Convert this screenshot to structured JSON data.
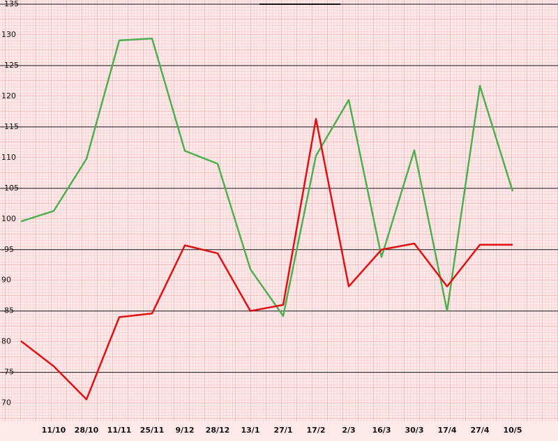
{
  "chart_data": {
    "type": "line",
    "categories": [
      null,
      "11/10",
      "28/10",
      "11/11",
      "25/11",
      "9/12",
      "28/12",
      "13/1",
      "27/1",
      "17/2",
      "2/3",
      "16/3",
      "30/3",
      "17/4",
      "27/4",
      "10/5"
    ],
    "series": [
      {
        "color": "#4caf50",
        "values": [
          99.6,
          101.3,
          109.8,
          129.1,
          129.4,
          111.1,
          109,
          91.8,
          84.2,
          110.3,
          119.4,
          93.8,
          111.2,
          85,
          121.7,
          104.5
        ]
      },
      {
        "color": "#e01010",
        "values": [
          80.1,
          76,
          70.6,
          84,
          84.6,
          95.7,
          94.4,
          85,
          86,
          116.3,
          89,
          95,
          96,
          89,
          95.8,
          95.8
        ]
      }
    ],
    "ylim": [
      67,
      135
    ],
    "yticks": [
      {
        "value": 135,
        "label": "-135"
      },
      130,
      {
        "value": 125,
        "label": "-125"
      },
      120,
      {
        "value": 115,
        "label": "-115"
      },
      110,
      {
        "value": 105,
        "label": "-105"
      },
      100,
      {
        "value": 95,
        "label": "-95"
      },
      90,
      {
        "value": 85,
        "label": "-85"
      },
      80,
      {
        "value": 75,
        "label": "-75"
      },
      70
    ],
    "grid": true
  }
}
